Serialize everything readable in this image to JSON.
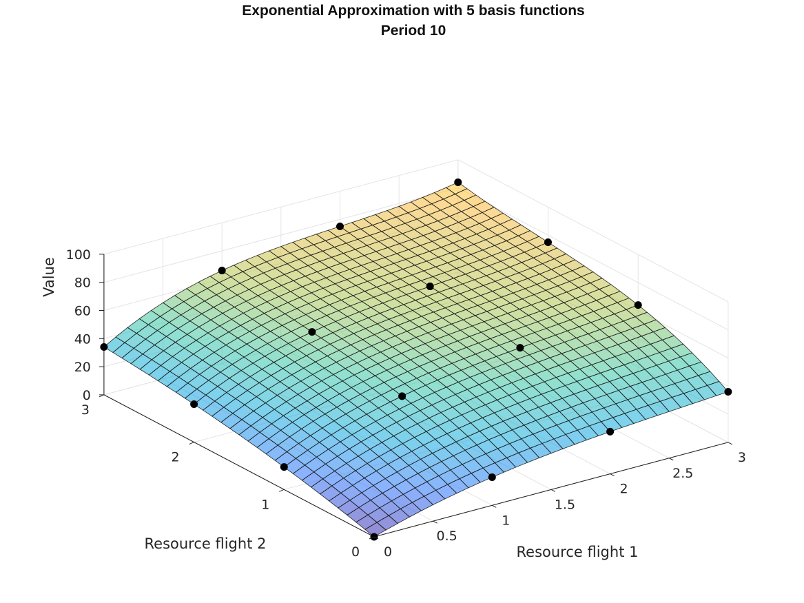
{
  "chart_data": {
    "type": "surface",
    "title": "Exponential Approximation with 5 basis functions",
    "subtitle": "Period 10",
    "xlabel": "Resource flight 1",
    "ylabel": "Resource flight 2",
    "zlabel": "Value",
    "xlim": [
      0,
      3
    ],
    "ylim": [
      0,
      3
    ],
    "zlim": [
      0,
      100
    ],
    "x_ticks": [
      "0",
      "0.5",
      "1",
      "1.5",
      "2",
      "2.5",
      "3"
    ],
    "y_ticks": [
      "0",
      "1",
      "2",
      "3"
    ],
    "z_ticks": [
      "0",
      "20",
      "40",
      "60",
      "80",
      "100"
    ],
    "grid": true,
    "colormap": "parula",
    "surface_alpha": 0.55,
    "points": [
      {
        "x": 0,
        "y": 0,
        "z": 0
      },
      {
        "x": 1,
        "y": 0,
        "z": 20
      },
      {
        "x": 2,
        "y": 0,
        "z": 30
      },
      {
        "x": 3,
        "y": 0,
        "z": 36
      },
      {
        "x": 0,
        "y": 1,
        "z": 16
      },
      {
        "x": 1,
        "y": 1,
        "z": 44
      },
      {
        "x": 2,
        "y": 1,
        "z": 56
      },
      {
        "x": 3,
        "y": 1,
        "z": 64
      },
      {
        "x": 0,
        "y": 2,
        "z": 27
      },
      {
        "x": 1,
        "y": 2,
        "z": 56
      },
      {
        "x": 2,
        "y": 2,
        "z": 66
      },
      {
        "x": 3,
        "y": 2,
        "z": 75
      },
      {
        "x": 0,
        "y": 3,
        "z": 34
      },
      {
        "x": 1,
        "y": 3,
        "z": 66
      },
      {
        "x": 2,
        "y": 3,
        "z": 75
      },
      {
        "x": 3,
        "y": 3,
        "z": 84
      }
    ]
  }
}
